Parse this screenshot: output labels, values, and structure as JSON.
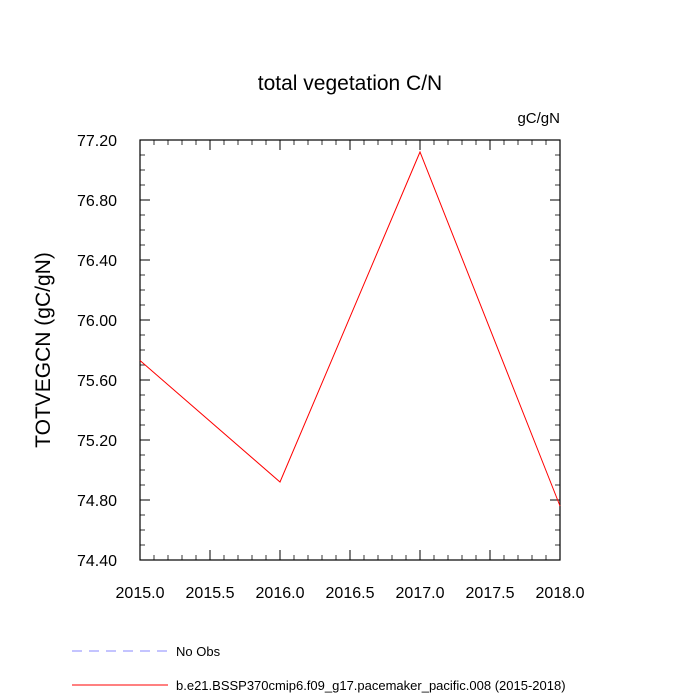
{
  "chart_data": {
    "type": "line",
    "title": "total vegetation C/N",
    "units_label": "gC/gN",
    "xlabel": "",
    "ylabel": "TOTVEGCN  (gC/gN)",
    "xlim": [
      2015.0,
      2018.0
    ],
    "ylim": [
      74.4,
      77.2
    ],
    "x_ticks": [
      2015.0,
      2015.5,
      2016.0,
      2016.5,
      2017.0,
      2017.5,
      2018.0
    ],
    "x_tick_labels": [
      "2015.0",
      "2015.5",
      "2016.0",
      "2016.5",
      "2017.0",
      "2017.5",
      "2018.0"
    ],
    "y_ticks": [
      74.4,
      74.8,
      75.2,
      75.6,
      76.0,
      76.4,
      76.8,
      77.2
    ],
    "y_tick_labels": [
      "74.40",
      "74.80",
      "75.20",
      "75.60",
      "76.00",
      "76.40",
      "76.80",
      "77.20"
    ],
    "grid": false,
    "series": [
      {
        "name": "b.e21.BSSP370cmip6.f09_g17.pacemaker_pacific.008 (2015-2018)",
        "color": "#ff0000",
        "dash": "solid",
        "x": [
          2015.0,
          2016.0,
          2017.0,
          2018.0
        ],
        "values": [
          75.73,
          74.92,
          77.12,
          74.76
        ]
      }
    ],
    "legend": [
      {
        "label": "No Obs",
        "color": "#8888ff",
        "dash": "dashed"
      },
      {
        "label": "b.e21.BSSP370cmip6.f09_g17.pacemaker_pacific.008 (2015-2018)",
        "color": "#ff0000",
        "dash": "solid"
      }
    ],
    "legend_position": "bottom"
  }
}
